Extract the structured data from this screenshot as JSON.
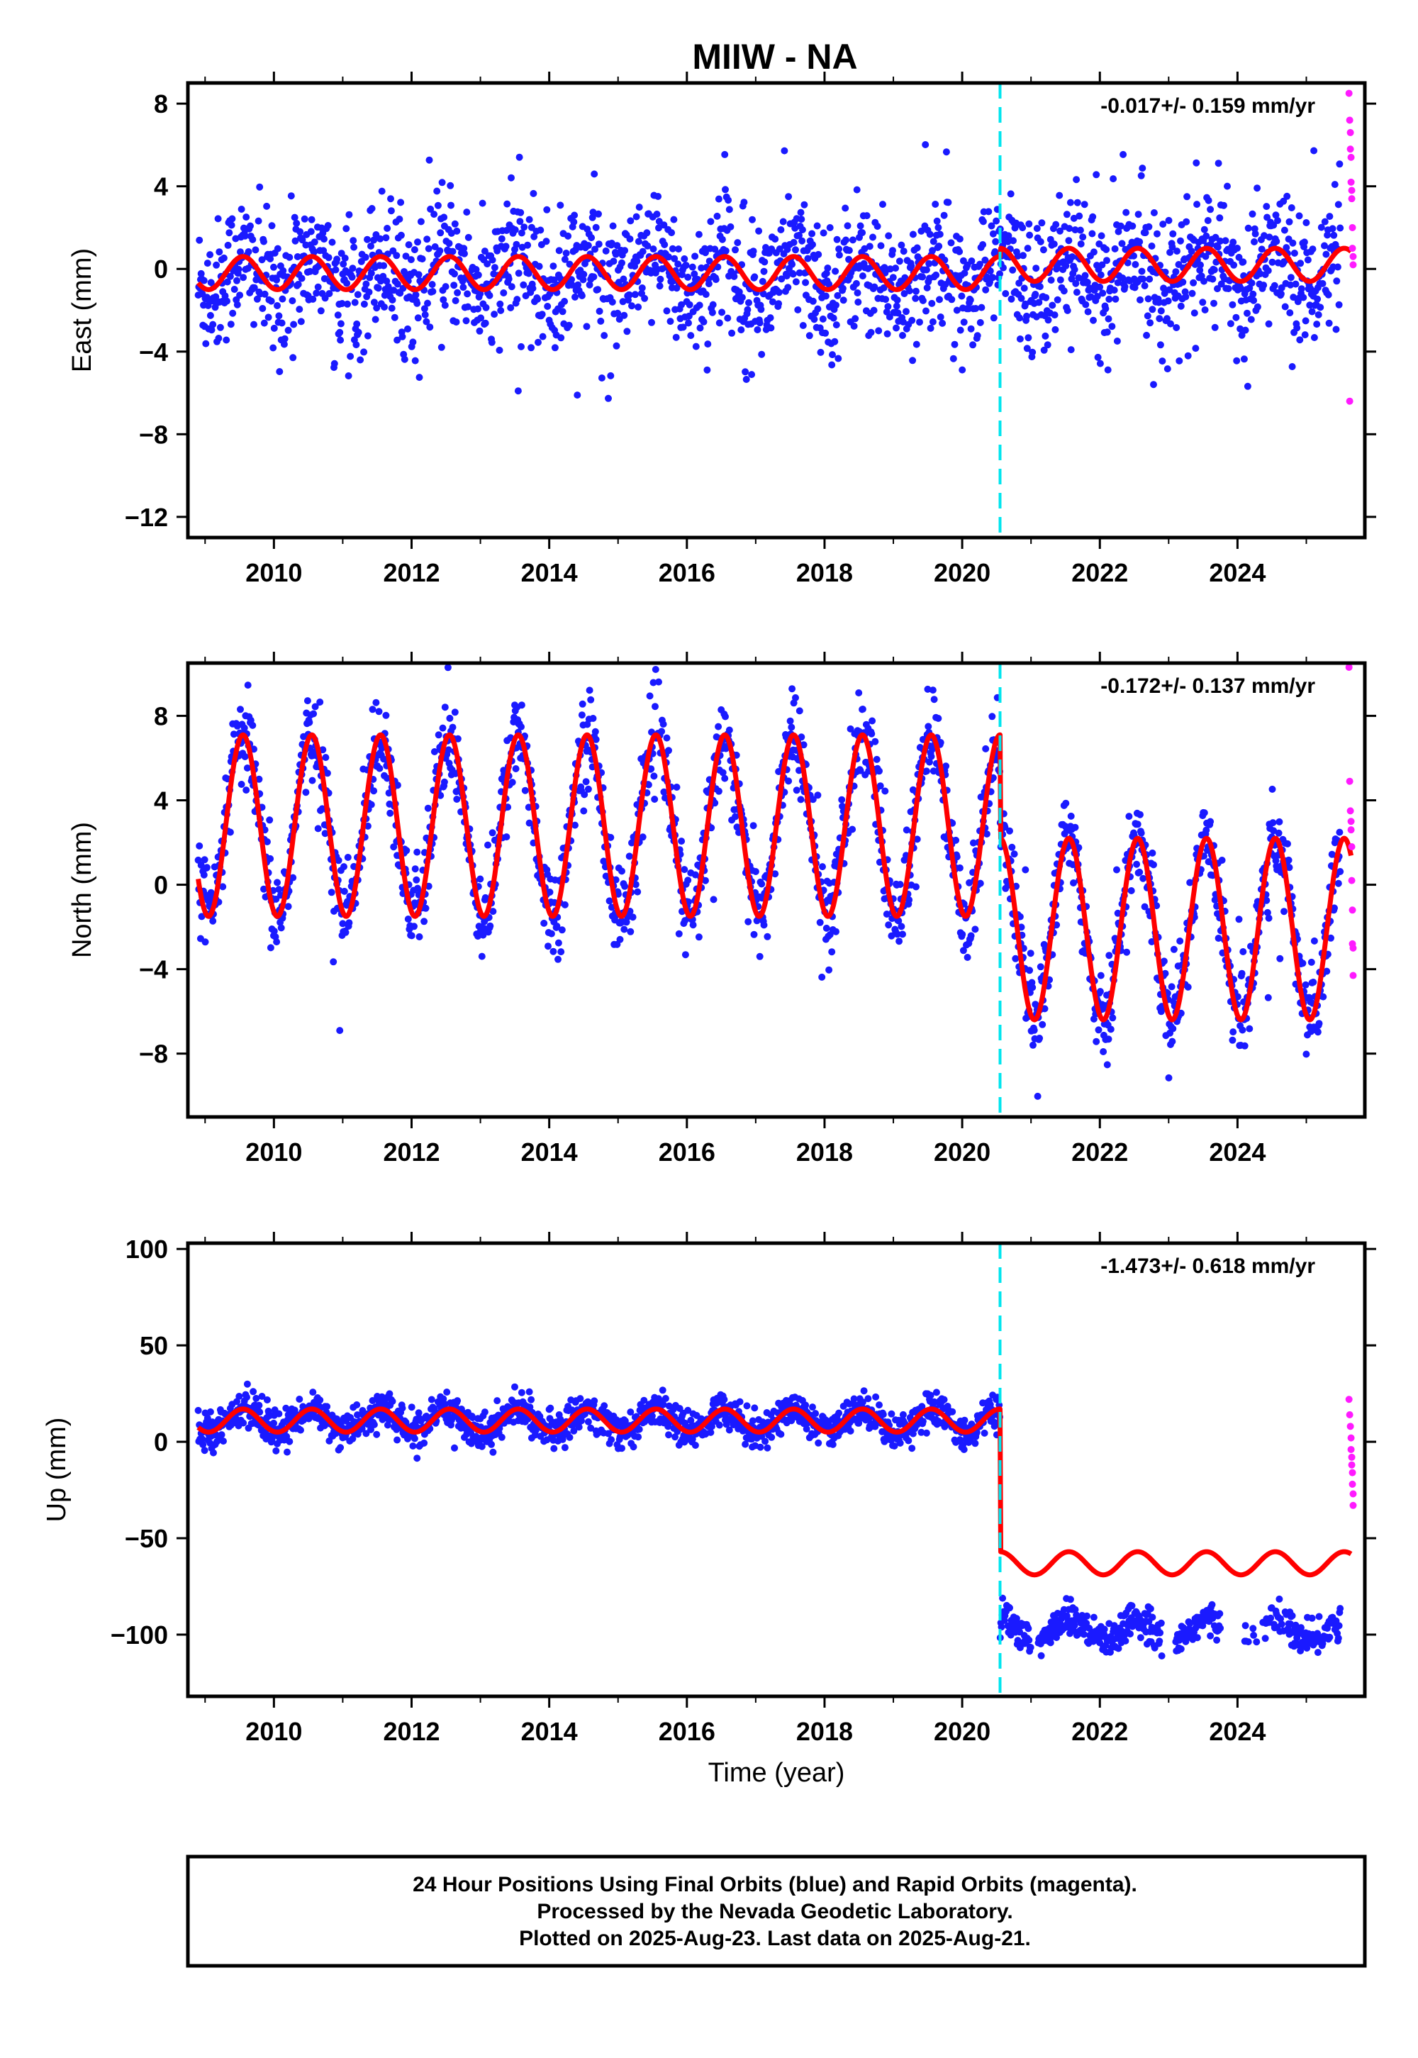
{
  "title": "MIIW - NA",
  "footer": {
    "line1": "24 Hour Positions Using Final Orbits (blue) and Rapid Orbits (magenta).",
    "line2": "Processed by the Nevada Geodetic Laboratory.",
    "line3": "Plotted on 2025-Aug-23. Last data on 2025-Aug-21."
  },
  "colors": {
    "final": "#1a1aff",
    "rapid": "#ff1aff",
    "model": "#ff0000",
    "break": "#00e5ee"
  },
  "chart_data": [
    {
      "type": "scatter",
      "component": "East",
      "ylabel": "East (mm)",
      "xlabel": "",
      "rate_label": "-0.017+/- 0.159 mm/yr",
      "xlim": [
        2008.75,
        2025.85
      ],
      "ylim": [
        -13,
        9
      ],
      "xticks": [
        "2010",
        "2012",
        "2014",
        "2016",
        "2018",
        "2020",
        "2022",
        "2024"
      ],
      "yticks": [
        "8",
        "4",
        "0",
        "−4",
        "−8",
        "−12"
      ],
      "grid": false,
      "break_epoch": 2020.55,
      "series": [
        {
          "name": "Final Orbits",
          "x_range": [
            2008.9,
            2025.5
          ],
          "center_before": -0.3,
          "center_after": 0.0,
          "seasonal_amp": 0.8,
          "scatter": 1.6
        },
        {
          "name": "Rapid Orbits",
          "x": [
            2025.62,
            2025.63,
            2025.64,
            2025.64,
            2025.65,
            2025.65,
            2025.66,
            2025.66,
            2025.67,
            2025.67,
            2025.68,
            2025.68,
            2025.63
          ],
          "y": [
            8.5,
            7.2,
            6.6,
            5.8,
            5.4,
            4.2,
            3.8,
            3.4,
            2.0,
            1.0,
            0.6,
            0.2,
            -6.4
          ]
        },
        {
          "name": "Model",
          "x_range": [
            2008.9,
            2025.65
          ],
          "offset_before": -0.2,
          "offset_after": 0.2,
          "seasonal_amp": 0.8
        }
      ]
    },
    {
      "type": "scatter",
      "component": "North",
      "ylabel": "North (mm)",
      "xlabel": "",
      "rate_label": "-0.172+/- 0.137 mm/yr",
      "xlim": [
        2008.75,
        2025.85
      ],
      "ylim": [
        -11,
        10.5
      ],
      "xticks": [
        "2010",
        "2012",
        "2014",
        "2016",
        "2018",
        "2020",
        "2022",
        "2024"
      ],
      "yticks": [
        "8",
        "4",
        "0",
        "−4",
        "−8"
      ],
      "grid": false,
      "break_epoch": 2020.55,
      "series": [
        {
          "name": "Final Orbits",
          "x_range": [
            2008.9,
            2025.5
          ],
          "center_before": 2.8,
          "center_after": -2.0,
          "seasonal_amp": 4.2,
          "scatter": 1.1
        },
        {
          "name": "Rapid Orbits",
          "x": [
            2025.62,
            2025.63,
            2025.64,
            2025.65,
            2025.65,
            2025.66,
            2025.66,
            2025.67,
            2025.67,
            2025.68,
            2025.68
          ],
          "y": [
            10.3,
            4.9,
            3.5,
            3.0,
            2.6,
            1.8,
            0.2,
            -1.2,
            -2.8,
            -3.0,
            -4.3
          ]
        },
        {
          "name": "Model",
          "x_range": [
            2008.9,
            2025.65
          ],
          "offset_before": 2.8,
          "offset_after": -2.1,
          "seasonal_amp": 4.3
        }
      ]
    },
    {
      "type": "scatter",
      "component": "Up",
      "ylabel": "Up (mm)",
      "xlabel": "Time (year)",
      "rate_label": "-1.473+/- 0.618 mm/yr",
      "xlim": [
        2008.75,
        2025.85
      ],
      "ylim": [
        -132,
        103
      ],
      "xticks": [
        "2010",
        "2012",
        "2014",
        "2016",
        "2018",
        "2020",
        "2022",
        "2024"
      ],
      "yticks": [
        "100",
        "50",
        "0",
        "−50",
        "−100"
      ],
      "grid": false,
      "break_epoch": 2020.55,
      "series": [
        {
          "name": "Final Orbits",
          "x_range": [
            2008.9,
            2025.5
          ],
          "center_before": 11,
          "center_after": -98,
          "seasonal_amp": 6,
          "scatter": 4.5
        },
        {
          "name": "Rapid Orbits",
          "x": [
            2025.62,
            2025.63,
            2025.64,
            2025.65,
            2025.65,
            2025.66,
            2025.66,
            2025.67,
            2025.67,
            2025.68,
            2025.68
          ],
          "y": [
            22,
            14,
            8,
            2,
            -4,
            -8,
            -12,
            -16,
            -22,
            -27,
            -33
          ]
        },
        {
          "name": "Model",
          "x_range": [
            2008.9,
            2025.65
          ],
          "offset_before": 11,
          "offset_after": -63,
          "seasonal_amp": 6
        }
      ]
    }
  ]
}
